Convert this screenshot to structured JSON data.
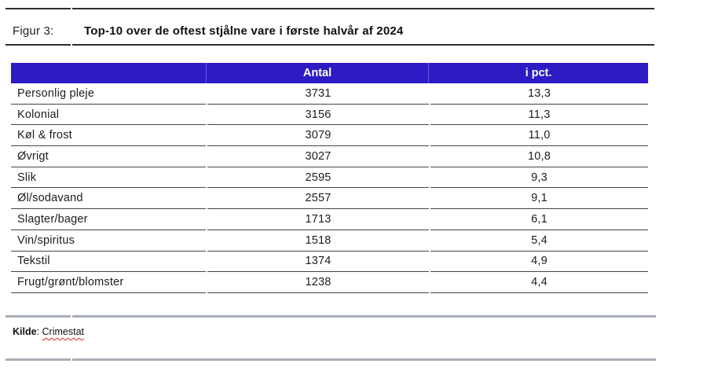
{
  "figure": {
    "label": "Figur 3:",
    "title": "Top-10 over de oftest stjålne vare i første halvår af 2024"
  },
  "table": {
    "headers": {
      "category": "",
      "antal": "Antal",
      "pct": "i pct."
    },
    "rows": [
      {
        "name": "Personlig pleje",
        "antal": "3731",
        "pct": "13,3"
      },
      {
        "name": "Kolonial",
        "antal": "3156",
        "pct": "11,3"
      },
      {
        "name": "Køl & frost",
        "antal": "3079",
        "pct": "11,0"
      },
      {
        "name": "Øvrigt",
        "antal": "3027",
        "pct": "10,8"
      },
      {
        "name": "Slik",
        "antal": "2595",
        "pct": "9,3"
      },
      {
        "name": "Øl/sodavand",
        "antal": "2557",
        "pct": "9,1"
      },
      {
        "name": "Slagter/bager",
        "antal": "1713",
        "pct": "6,1"
      },
      {
        "name": "Vin/spiritus",
        "antal": "1518",
        "pct": "5,4"
      },
      {
        "name": "Tekstil",
        "antal": "1374",
        "pct": "4,9"
      },
      {
        "name": "Frugt/grønt/blomster",
        "antal": "1238",
        "pct": "4,4"
      }
    ]
  },
  "source": {
    "label": "Kilde",
    "separator": ": ",
    "value": "Crimestat"
  },
  "colors": {
    "header_bg": "#2d1bc4",
    "header_divider": "#6055d6",
    "row_line": "#454545",
    "dark_rule": "#2f2f2f",
    "grey_rule": "#a9aeb6",
    "squiggle_red": "#d42a1e"
  }
}
